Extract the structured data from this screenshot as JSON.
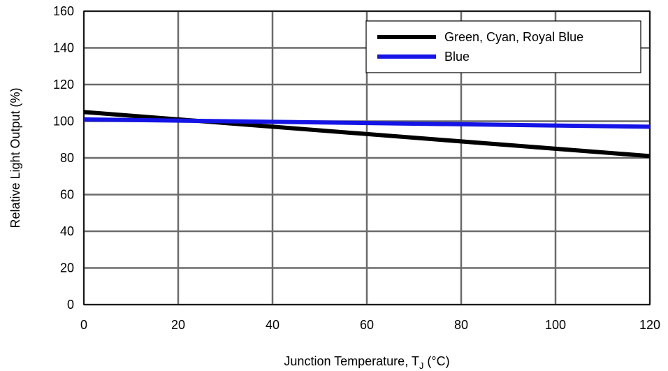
{
  "chart_data": {
    "type": "line",
    "title": "",
    "xlabel": "Junction Temperature, T",
    "xlabel_subscript": "J",
    "xlabel_unit": " (°C)",
    "ylabel": "Relative Light Output (%)",
    "xlim": [
      0,
      120
    ],
    "ylim": [
      0,
      160
    ],
    "x_ticks": [
      0,
      20,
      40,
      60,
      80,
      100,
      120
    ],
    "y_ticks": [
      0,
      20,
      40,
      60,
      80,
      100,
      120,
      140,
      160
    ],
    "x_tick_labels": [
      "0",
      "20",
      "40",
      "60",
      "80",
      "100",
      "120"
    ],
    "y_tick_labels": [
      "0",
      "20",
      "40",
      "60",
      "80",
      "100",
      "120",
      "140",
      "160"
    ],
    "grid": true,
    "legend_position": "top-right",
    "series": [
      {
        "name": "Green, Cyan, Royal Blue",
        "color": "#000000",
        "x": [
          0,
          120
        ],
        "y": [
          105,
          81
        ]
      },
      {
        "name": "Blue",
        "color": "#1414e6",
        "x": [
          0,
          120
        ],
        "y": [
          101,
          97
        ]
      }
    ]
  }
}
